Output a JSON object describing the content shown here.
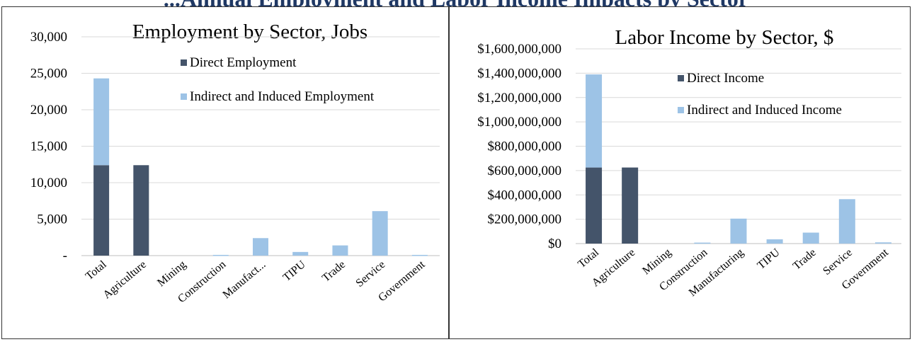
{
  "page": {
    "heading": "...Annual Employment and Labor Income Impacts by Sector",
    "colors": {
      "direct": "#44546a",
      "indirect": "#9dc3e6",
      "grid": "#d9d9d9",
      "axis_text": "#000000"
    }
  },
  "chart_data": [
    {
      "type": "bar",
      "stacked": true,
      "title": "Employment by Sector, Jobs",
      "categories": [
        "Total",
        "Agriculture",
        "Mining",
        "Construction",
        "Manufact...",
        "TIPU",
        "Trade",
        "Service",
        "Government"
      ],
      "series": [
        {
          "name": "Direct Employment",
          "color": "#44546a",
          "values": [
            12400,
            12400,
            0,
            0,
            0,
            0,
            0,
            0,
            0
          ]
        },
        {
          "name": "Indirect and Induced Employment",
          "color": "#9dc3e6",
          "values": [
            11900,
            0,
            0,
            100,
            2400,
            500,
            1400,
            6100,
            100
          ]
        }
      ],
      "ylim": [
        0,
        30000
      ],
      "yticks": [
        0,
        5000,
        10000,
        15000,
        20000,
        25000,
        30000
      ],
      "ytick_labels": [
        "-",
        "5,000",
        "10,000",
        "15,000",
        "20,000",
        "25,000",
        "30,000"
      ],
      "xlabel": "",
      "ylabel": "",
      "grid": true,
      "legend_position": "top-right"
    },
    {
      "type": "bar",
      "stacked": true,
      "title": "Labor Income by Sector, $",
      "categories": [
        "Total",
        "Agriculture",
        "Mining",
        "Construction",
        "Manufacturing",
        "TIPU",
        "Trade",
        "Service",
        "Government"
      ],
      "series": [
        {
          "name": "Direct Income",
          "color": "#44546a",
          "values": [
            625000000,
            625000000,
            0,
            0,
            0,
            0,
            0,
            0,
            0
          ]
        },
        {
          "name": "Indirect and Induced Income",
          "color": "#9dc3e6",
          "values": [
            765000000,
            0,
            0,
            8000000,
            205000000,
            35000000,
            90000000,
            365000000,
            10000000
          ]
        }
      ],
      "ylim": [
        0,
        1600000000
      ],
      "yticks": [
        0,
        200000000,
        400000000,
        600000000,
        800000000,
        1000000000,
        1200000000,
        1400000000,
        1600000000
      ],
      "ytick_labels": [
        "$0",
        "$200,000,000",
        "$400,000,000",
        "$600,000,000",
        "$800,000,000",
        "$1,000,000,000",
        "$1,200,000,000",
        "$1,400,000,000",
        "$1,600,000,000"
      ],
      "xlabel": "",
      "ylabel": "",
      "grid": true,
      "legend_position": "top-right"
    }
  ]
}
